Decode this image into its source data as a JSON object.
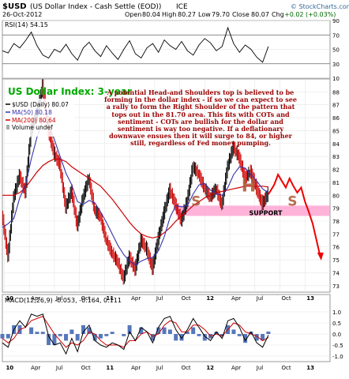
{
  "header": {
    "symbol": "$USD",
    "name": "(US Dollar Index - Cash Settle (EOD))",
    "exchange": "ICE",
    "date": "26-Oct-2012",
    "open_label": "Open",
    "open": "80.04",
    "high_label": "High",
    "high": "80.27",
    "low_label": "Low",
    "low": "79.70",
    "close_label": "Close",
    "close": "80.07",
    "change_label": "Chg",
    "change": "+0.02 (+0.03%)",
    "brand": "© StockCharts.com"
  },
  "colors": {
    "price_up": "#000000",
    "price_down": "#cc0000",
    "ma50": "#3333aa",
    "ma200": "#cc0000",
    "support_band": "#ff99cc",
    "annotation": "#990000",
    "title_green": "#00aa00",
    "macd_hist": "#5577bb",
    "shoulder_text": "#aa5533"
  },
  "chart_data": [
    {
      "type": "line",
      "panel": "rsi",
      "legend": "RSI(14) 54.15",
      "ylim": [
        10,
        90
      ],
      "y_ticks": [
        10,
        30,
        50,
        70,
        90
      ],
      "guide_lines": [
        30,
        70
      ],
      "x": [
        0,
        3,
        6,
        9,
        12,
        15,
        18,
        21,
        24,
        27,
        30,
        33,
        36,
        39,
        42,
        45,
        48,
        51,
        54,
        57,
        60,
        63,
        66,
        69,
        72,
        75,
        78,
        81,
        84,
        87,
        90,
        93,
        96,
        99,
        102,
        105,
        108,
        111,
        114,
        117,
        120,
        123,
        126,
        129,
        132,
        135,
        138
      ],
      "values": [
        48,
        45,
        58,
        52,
        62,
        74,
        55,
        42,
        38,
        50,
        46,
        57,
        44,
        35,
        52,
        60,
        48,
        40,
        55,
        45,
        36,
        50,
        62,
        44,
        38,
        52,
        58,
        46,
        63,
        55,
        50,
        61,
        48,
        42,
        56,
        65,
        59,
        48,
        54,
        80,
        58,
        46,
        56,
        50,
        39,
        32,
        54
      ]
    },
    {
      "type": "line",
      "panel": "price",
      "title": "US Dollar Index: 3-year",
      "legend": [
        "$USD (Daily) 80.07",
        "MA(50) 80.18",
        "MA(200) 80.64",
        "Volume undef"
      ],
      "ylim": [
        72.5,
        89
      ],
      "y_ticks": [
        73,
        74,
        75,
        76,
        77,
        78,
        79,
        80,
        81,
        82,
        83,
        84,
        85,
        86,
        87,
        88
      ],
      "x": [
        0,
        3,
        6,
        9,
        12,
        15,
        18,
        21,
        24,
        27,
        30,
        33,
        36,
        39,
        42,
        45,
        48,
        51,
        54,
        57,
        60,
        63,
        66,
        69,
        72,
        75,
        78,
        81,
        84,
        87,
        90,
        93,
        96,
        99,
        102,
        105,
        108,
        111,
        114,
        117,
        120,
        123,
        126,
        129,
        132,
        135,
        138
      ],
      "price": [
        78.5,
        75.2,
        79.8,
        81.5,
        80.2,
        85,
        86.2,
        88.4,
        85,
        83.2,
        82.3,
        79,
        80.3,
        77.6,
        79.8,
        81.3,
        78.8,
        78.3,
        76.5,
        75.5,
        74.8,
        73.5,
        75.2,
        74.2,
        76.5,
        75.8,
        74.3,
        76.6,
        78.6,
        80.4,
        79.2,
        78,
        79.5,
        82.2,
        81.6,
        80.5,
        79.8,
        80.5,
        79.2,
        82.2,
        83.7,
        82.9,
        81.3,
        81.8,
        80.5,
        79.3,
        80.07
      ],
      "ma50": [
        77.5,
        77.8,
        78.2,
        79.8,
        80.8,
        82.8,
        84.5,
        85.8,
        85.5,
        84.3,
        83,
        81.7,
        80.8,
        79.5,
        79.3,
        79.6,
        79.4,
        78.7,
        77.9,
        77,
        76.1,
        75.4,
        74.9,
        74.6,
        74.9,
        75.1,
        75.2,
        75.7,
        76.8,
        78.3,
        79.2,
        79.1,
        79.2,
        80.1,
        80.8,
        80.9,
        80.4,
        80.1,
        80,
        80.6,
        81.6,
        82.2,
        82.1,
        81.6,
        81.1,
        80.5,
        80.18
      ],
      "ma200": [
        80,
        80,
        80,
        80.2,
        80.6,
        81.2,
        81.8,
        82.3,
        82.6,
        82.8,
        82.8,
        82.6,
        82.2,
        81.9,
        81.6,
        81.3,
        81,
        80.7,
        80.2,
        79.7,
        79.1,
        78.5,
        77.9,
        77.4,
        77,
        76.8,
        76.7,
        76.8,
        77.1,
        77.5,
        78,
        78.4,
        78.8,
        79.2,
        79.5,
        79.8,
        80,
        80.2,
        80.3,
        80.4,
        80.5,
        80.6,
        80.7,
        80.7,
        80.7,
        80.7,
        80.64
      ],
      "projection": {
        "x": [
          138,
          141,
          143,
          145,
          147,
          149,
          151,
          153,
          155,
          157,
          159,
          161,
          163,
          165
        ],
        "values": [
          80.07,
          80.8,
          81.6,
          81.1,
          80.6,
          81.3,
          80.7,
          80.2,
          80.6,
          79.5,
          78.7,
          77.8,
          76.5,
          75.2
        ]
      },
      "support": {
        "label": "SUPPORT",
        "low": 78.4,
        "high": 79.2
      },
      "pattern_labels": [
        {
          "text": "S",
          "x": 98,
          "y": 79.2
        },
        {
          "text": "H",
          "x": 124,
          "y": 80.3
        },
        {
          "text": "S",
          "x": 148,
          "y": 79.2
        }
      ],
      "annotation": "A potential Head-and Shoulders top is believed to be forming in the dollar index - if so we can expect to see a rally to form the Right Shoulder of the pattern that tops out in the 81.70 area. This fits with COTs and sentiment - COTs are bullish for the dollar and sentiment is way too negative. If a deflationary downwave ensues then it will surge to 84, or higher still, regardless of Fed money pumping.",
      "x_tick_labels": [
        {
          "text": "10",
          "x": 1
        },
        {
          "text": "Apr",
          "x": 14
        },
        {
          "text": "Jul",
          "x": 27
        },
        {
          "text": "Oct",
          "x": 40
        },
        {
          "text": "11",
          "x": 53
        },
        {
          "text": "Apr",
          "x": 66
        },
        {
          "text": "Jul",
          "x": 79
        },
        {
          "text": "Oct",
          "x": 92
        },
        {
          "text": "12",
          "x": 105
        },
        {
          "text": "Apr",
          "x": 118
        },
        {
          "text": "Jul",
          "x": 131
        },
        {
          "text": "Oct",
          "x": 144
        },
        {
          "text": "13",
          "x": 157
        }
      ]
    },
    {
      "type": "line",
      "panel": "macd",
      "legend": "MACD(12,26,9) -0.053, -0.164, 0.111",
      "ylim": [
        -1.25,
        1.25
      ],
      "y_ticks": [
        -1.0,
        -0.5,
        0.0,
        0.5,
        1.0
      ],
      "x": [
        0,
        3,
        6,
        9,
        12,
        15,
        18,
        21,
        24,
        27,
        30,
        33,
        36,
        39,
        42,
        45,
        48,
        51,
        54,
        57,
        60,
        63,
        66,
        69,
        72,
        75,
        78,
        81,
        84,
        87,
        90,
        93,
        96,
        99,
        102,
        105,
        108,
        111,
        114,
        117,
        120,
        123,
        126,
        129,
        132,
        135,
        138
      ],
      "macd": [
        -0.4,
        -0.6,
        0.2,
        0.6,
        0.3,
        0.9,
        0.8,
        0.9,
        -0.1,
        -0.5,
        -0.4,
        -0.9,
        -0.2,
        -0.8,
        0.1,
        0.4,
        -0.3,
        -0.5,
        -0.6,
        -0.4,
        -0.5,
        -0.7,
        0.1,
        -0.3,
        0.3,
        0.1,
        -0.4,
        0.3,
        0.7,
        0.8,
        0.2,
        -0.2,
        0.2,
        0.7,
        0.3,
        -0.1,
        -0.3,
        0.1,
        -0.2,
        0.6,
        0.7,
        0.3,
        -0.3,
        0.1,
        -0.4,
        -0.6,
        -0.053
      ],
      "signal": [
        -0.2,
        -0.4,
        -0.2,
        0.2,
        0.3,
        0.6,
        0.7,
        0.8,
        0.4,
        0,
        -0.3,
        -0.6,
        -0.4,
        -0.5,
        -0.3,
        0.1,
        0,
        -0.3,
        -0.5,
        -0.5,
        -0.5,
        -0.6,
        -0.3,
        -0.3,
        0,
        0.1,
        -0.1,
        0,
        0.4,
        0.6,
        0.5,
        0.1,
        0.1,
        0.4,
        0.4,
        0.2,
        -0.1,
        0,
        -0.1,
        0.2,
        0.5,
        0.4,
        0.1,
        0,
        -0.1,
        -0.3,
        -0.164
      ],
      "histogram": [
        -0.2,
        -0.2,
        0.4,
        0.4,
        0,
        0.3,
        0.1,
        0.1,
        -0.5,
        -0.5,
        -0.1,
        -0.3,
        0.2,
        -0.3,
        0.4,
        0.3,
        -0.3,
        -0.2,
        -0.1,
        0.1,
        0,
        -0.1,
        0.4,
        0,
        0.3,
        0,
        -0.3,
        0.3,
        0.3,
        0.2,
        -0.3,
        -0.3,
        0.1,
        0.3,
        -0.1,
        -0.3,
        -0.2,
        0.1,
        -0.1,
        0.4,
        0.2,
        -0.1,
        -0.4,
        0.1,
        -0.3,
        -0.3,
        0.111
      ]
    }
  ]
}
